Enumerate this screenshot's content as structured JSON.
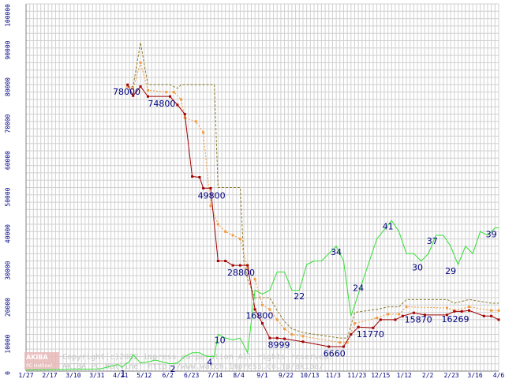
{
  "chart_data": {
    "type": "line",
    "ylim": [
      0,
      100000
    ],
    "y_ticks": [
      "100000",
      "90000",
      "80000",
      "70000",
      "60000",
      "50000",
      "40000",
      "30000",
      "20000",
      "10000",
      "0"
    ],
    "x_tick_labels": [
      "1/27",
      "2/17",
      "3/10",
      "3/31",
      "4/21",
      "5/12",
      "6/2",
      "6/23",
      "7/14",
      "8/4",
      "9/1",
      "9/22",
      "10/13",
      "11/3",
      "11/23",
      "12/15",
      "1/12",
      "2/2",
      "2/23",
      "3/16",
      "4/6"
    ],
    "grid": true,
    "colors": {
      "max_price": "#8c7a28",
      "avg_price": "#f09a3c",
      "min_price": "#a00000",
      "shop_count": "#33dd33",
      "grid": "#d0d0d0",
      "text": "#000080"
    },
    "series": [
      {
        "key": "max_price",
        "style": "dashed",
        "points": [
          [
            27.5,
            77500
          ],
          [
            29,
            77500
          ],
          [
            31,
            89500
          ],
          [
            33,
            78000
          ],
          [
            39,
            78000
          ],
          [
            41,
            77000
          ],
          [
            42,
            78000
          ],
          [
            51,
            78000
          ],
          [
            52,
            50000
          ],
          [
            58,
            50000
          ],
          [
            59,
            30000
          ],
          [
            60,
            25000
          ],
          [
            62,
            20000
          ],
          [
            66,
            20000
          ],
          [
            68,
            16500
          ],
          [
            70,
            13500
          ],
          [
            72,
            11500
          ],
          [
            75,
            10500
          ],
          [
            85,
            9000
          ],
          [
            87,
            9000
          ],
          [
            89,
            16000
          ],
          [
            95,
            16800
          ],
          [
            98,
            17500
          ],
          [
            101,
            17500
          ],
          [
            103,
            19500
          ],
          [
            114,
            19500
          ],
          [
            116,
            18500
          ],
          [
            120,
            19500
          ],
          [
            126,
            18500
          ],
          [
            128,
            18500
          ]
        ]
      },
      {
        "key": "avg_price",
        "style": "dotted-markers",
        "points": [
          [
            27.5,
            77500
          ],
          [
            29,
            77000
          ],
          [
            31,
            84000
          ],
          [
            33,
            76500
          ],
          [
            38,
            76000
          ],
          [
            40,
            76000
          ],
          [
            42,
            74000
          ],
          [
            43,
            69000
          ],
          [
            46,
            68000
          ],
          [
            48,
            65000
          ],
          [
            50,
            45000
          ],
          [
            52,
            40000
          ],
          [
            54,
            38000
          ],
          [
            56,
            37000
          ],
          [
            58,
            36000
          ],
          [
            60,
            28000
          ],
          [
            62,
            25000
          ],
          [
            64,
            18000
          ],
          [
            66,
            16800
          ],
          [
            68,
            14000
          ],
          [
            70,
            11500
          ],
          [
            72,
            10000
          ],
          [
            75,
            9500
          ],
          [
            85,
            7800
          ],
          [
            87,
            7800
          ],
          [
            89,
            13000
          ],
          [
            95,
            14500
          ],
          [
            98,
            15500
          ],
          [
            101,
            15500
          ],
          [
            103,
            17500
          ],
          [
            114,
            17200
          ],
          [
            116,
            16500
          ],
          [
            120,
            17500
          ],
          [
            126,
            16500
          ],
          [
            128,
            16500
          ]
        ]
      },
      {
        "key": "min_price",
        "style": "solid-markers",
        "points": [
          [
            27.5,
            78000
          ],
          [
            29,
            75000
          ],
          [
            31,
            77500
          ],
          [
            33,
            74800
          ],
          [
            39,
            74800
          ],
          [
            41,
            72500
          ],
          [
            43,
            70000
          ],
          [
            45,
            53000
          ],
          [
            47,
            52800
          ],
          [
            48,
            49800
          ],
          [
            50,
            49800
          ],
          [
            52,
            30000
          ],
          [
            54,
            30000
          ],
          [
            56,
            28800
          ],
          [
            58,
            28800
          ],
          [
            60,
            28800
          ],
          [
            62,
            16800
          ],
          [
            64,
            13000
          ],
          [
            66,
            8999
          ],
          [
            68,
            8999
          ],
          [
            70,
            8800
          ],
          [
            75,
            8000
          ],
          [
            82,
            6660
          ],
          [
            86,
            6660
          ],
          [
            88,
            10000
          ],
          [
            90,
            12000
          ],
          [
            94,
            11770
          ],
          [
            96,
            14000
          ],
          [
            100,
            14000
          ],
          [
            102,
            15000
          ],
          [
            105,
            15870
          ],
          [
            108,
            15300
          ],
          [
            114,
            15300
          ],
          [
            116,
            16269
          ],
          [
            118,
            16269
          ],
          [
            120,
            16500
          ],
          [
            124,
            15000
          ],
          [
            126,
            15000
          ],
          [
            128,
            14000
          ]
        ]
      },
      {
        "key": "shop_count",
        "style": "solid",
        "points": [
          [
            0,
            300
          ],
          [
            20,
            600
          ],
          [
            25,
            1800
          ],
          [
            26,
            1000
          ],
          [
            27,
            2000
          ],
          [
            28,
            2500
          ],
          [
            29,
            4500
          ],
          [
            31,
            2200
          ],
          [
            33,
            2500
          ],
          [
            35,
            3000
          ],
          [
            37,
            2500
          ],
          [
            39,
            2000
          ],
          [
            41,
            2200
          ],
          [
            43,
            4000
          ],
          [
            45,
            5000
          ],
          [
            47,
            5000
          ],
          [
            49,
            4000
          ],
          [
            51,
            4000
          ],
          [
            52,
            10000
          ],
          [
            54,
            9000
          ],
          [
            56,
            8500
          ],
          [
            58,
            9000
          ],
          [
            59,
            7000
          ],
          [
            60,
            5000
          ],
          [
            62,
            22000
          ],
          [
            64,
            21000
          ],
          [
            66,
            22000
          ],
          [
            68,
            27000
          ],
          [
            70,
            27000
          ],
          [
            72,
            22000
          ],
          [
            74,
            22000
          ],
          [
            76,
            29000
          ],
          [
            78,
            30000
          ],
          [
            80,
            30000
          ],
          [
            82,
            32000
          ],
          [
            84,
            34000
          ],
          [
            86,
            30000
          ],
          [
            88,
            15000
          ],
          [
            91,
            24000
          ],
          [
            95,
            36000
          ],
          [
            99,
            41000
          ],
          [
            101,
            38000
          ],
          [
            103,
            32000
          ],
          [
            105,
            32000
          ],
          [
            107,
            30000
          ],
          [
            109,
            32000
          ],
          [
            111,
            37000
          ],
          [
            113,
            37000
          ],
          [
            115,
            34000
          ],
          [
            117,
            29000
          ],
          [
            119,
            34000
          ],
          [
            121,
            32000
          ],
          [
            123,
            38000
          ],
          [
            125,
            37000
          ],
          [
            127,
            39000
          ],
          [
            128,
            39000
          ]
        ]
      }
    ],
    "data_labels": [
      {
        "text": "78000",
        "x": 23.5,
        "y": 75300
      },
      {
        "text": "74800",
        "x": 33,
        "y": 72000
      },
      {
        "text": "49800",
        "x": 46.5,
        "y": 47000
      },
      {
        "text": "28800",
        "x": 54.5,
        "y": 26000
      },
      {
        "text": "16800",
        "x": 59.5,
        "y": 14300
      },
      {
        "text": "8999",
        "x": 65.5,
        "y": 6300
      },
      {
        "text": "6660",
        "x": 80.5,
        "y": 4000
      },
      {
        "text": "11770",
        "x": 89.5,
        "y": 9200
      },
      {
        "text": "15870",
        "x": 102.5,
        "y": 13200
      },
      {
        "text": "16269",
        "x": 112.5,
        "y": 13300
      },
      {
        "text": "22",
        "x": 72.5,
        "y": 19600
      },
      {
        "text": "24",
        "x": 88.5,
        "y": 21800
      },
      {
        "text": "34",
        "x": 82.5,
        "y": 31600
      },
      {
        "text": "41",
        "x": 96.5,
        "y": 38600
      },
      {
        "text": "30",
        "x": 104.5,
        "y": 27400
      },
      {
        "text": "37",
        "x": 108.5,
        "y": 34600
      },
      {
        "text": "29",
        "x": 113.5,
        "y": 26400
      },
      {
        "text": "39",
        "x": 124.5,
        "y": 36400
      },
      {
        "text": "10",
        "x": 51,
        "y": 7600
      },
      {
        "text": "4",
        "x": 49,
        "y": 1600
      },
      {
        "text": "2",
        "x": 39,
        "y": -200
      },
      {
        "text": "1",
        "x": 25.5,
        "y": -1500
      }
    ]
  },
  "watermark": {
    "logo_top": "AKIBA",
    "logo_bottom": "PC Hotline!",
    "line1": "Copyright(c)2002 impress corporation All rights reserved.",
    "line2": "AKIBA PC Hotline! http://www.watch.impress.co.jp/akiba/"
  }
}
